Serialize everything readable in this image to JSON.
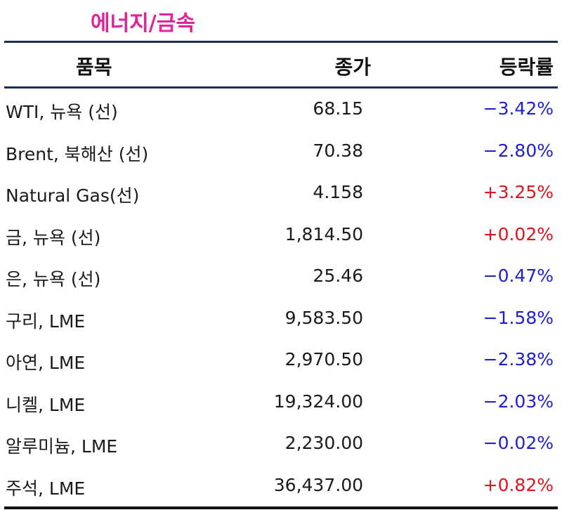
{
  "title": "에너지/금속",
  "headers": {
    "item": "품목",
    "close": "종가",
    "change": "등락률"
  },
  "colors": {
    "title": "#e0249a",
    "negative": "#1f1fd0",
    "positive": "#e0141e",
    "rule": "#1f2d52"
  },
  "rows": [
    {
      "name": "WTI, 뉴욕 (선)",
      "close": "68.15",
      "change": "−3.42%",
      "dir": "neg"
    },
    {
      "name": "Brent, 북해산 (선)",
      "close": "70.38",
      "change": "−2.80%",
      "dir": "neg"
    },
    {
      "name": "Natural Gas(선)",
      "close": "4.158",
      "change": "+3.25%",
      "dir": "pos"
    },
    {
      "name": "금, 뉴욕  (선)",
      "close": "1,814.50",
      "change": "+0.02%",
      "dir": "pos"
    },
    {
      "name": "은, 뉴욕  (선)",
      "close": "25.46",
      "change": "−0.47%",
      "dir": "neg"
    },
    {
      "name": "구리, LME",
      "close": "9,583.50",
      "change": "−1.58%",
      "dir": "neg"
    },
    {
      "name": "아연, LME",
      "close": "2,970.50",
      "change": "−2.38%",
      "dir": "neg"
    },
    {
      "name": "니켈, LME",
      "close": "19,324.00",
      "change": "−2.03%",
      "dir": "neg"
    },
    {
      "name": "알루미늄, LME",
      "close": "2,230.00",
      "change": "−0.02%",
      "dir": "neg"
    },
    {
      "name": "주석, LME",
      "close": "36,437.00",
      "change": "+0.82%",
      "dir": "pos"
    }
  ]
}
